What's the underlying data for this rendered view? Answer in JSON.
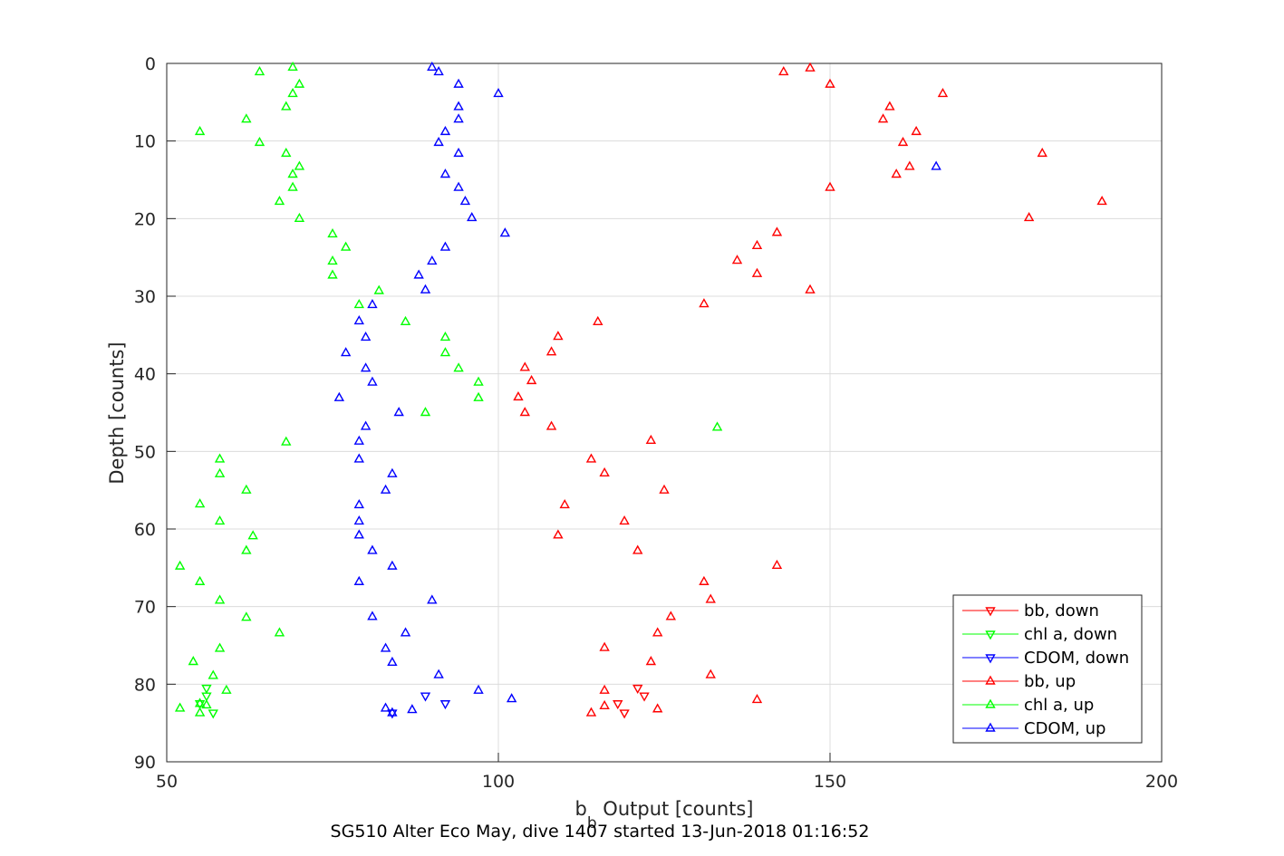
{
  "chart_data": {
    "type": "scatter",
    "xlabel": "b",
    "xlabel_sub": "b",
    "xlabel_rest": " Output [counts]",
    "ylabel": "Depth [counts]",
    "caption": "SG510 Alter Eco May, dive 1407 started 13-Jun-2018 01:16:52",
    "xlim": [
      50,
      200
    ],
    "ylim": [
      0,
      90
    ],
    "y_reversed": true,
    "grid": true,
    "xticks": [
      "50",
      "100",
      "150",
      "200"
    ],
    "yticks": [
      "0",
      "10",
      "20",
      "30",
      "40",
      "50",
      "60",
      "70",
      "80",
      "90"
    ],
    "legend_position": "bottom-right",
    "series": [
      {
        "name": "bb, down",
        "color": "#ff0000",
        "marker": "triangle-down",
        "points": [
          [
            121,
            80.5
          ],
          [
            122,
            81.5
          ],
          [
            118,
            82.5
          ],
          [
            119,
            83.7
          ]
        ]
      },
      {
        "name": "chl a, down",
        "color": "#00ff00",
        "marker": "triangle-down",
        "points": [
          [
            56,
            80.5
          ],
          [
            56,
            81.5
          ],
          [
            55,
            82.5
          ],
          [
            57,
            83.7
          ]
        ]
      },
      {
        "name": "CDOM, down",
        "color": "#0000ff",
        "marker": "triangle-down",
        "points": [
          [
            89,
            81.5
          ],
          [
            92,
            82.5
          ],
          [
            84,
            83.7
          ]
        ]
      },
      {
        "name": "bb, up",
        "color": "#ff0000",
        "marker": "triangle-up",
        "points": [
          [
            147,
            0.6
          ],
          [
            143,
            1.1
          ],
          [
            150,
            2.7
          ],
          [
            167,
            3.9
          ],
          [
            159,
            5.6
          ],
          [
            158,
            7.2
          ],
          [
            163,
            8.8
          ],
          [
            161,
            10.2
          ],
          [
            182,
            11.6
          ],
          [
            162,
            13.3
          ],
          [
            160,
            14.3
          ],
          [
            150,
            16
          ],
          [
            191,
            17.8
          ],
          [
            180,
            19.9
          ],
          [
            142,
            21.8
          ],
          [
            139,
            23.5
          ],
          [
            136,
            25.4
          ],
          [
            139,
            27.1
          ],
          [
            147,
            29.2
          ],
          [
            131,
            31
          ],
          [
            115,
            33.3
          ],
          [
            109,
            35.2
          ],
          [
            108,
            37.2
          ],
          [
            104,
            39.2
          ],
          [
            105,
            40.9
          ],
          [
            103,
            43
          ],
          [
            104,
            45
          ],
          [
            108,
            46.8
          ],
          [
            123,
            48.6
          ],
          [
            114,
            51
          ],
          [
            116,
            52.8
          ],
          [
            125,
            55
          ],
          [
            110,
            56.9
          ],
          [
            119,
            59
          ],
          [
            109,
            60.8
          ],
          [
            121,
            62.8
          ],
          [
            142,
            64.7
          ],
          [
            131,
            66.8
          ],
          [
            132,
            69.1
          ],
          [
            126,
            71.3
          ],
          [
            124,
            73.4
          ],
          [
            116,
            75.3
          ],
          [
            123,
            77.1
          ],
          [
            132,
            78.8
          ],
          [
            116,
            80.8
          ],
          [
            139,
            82
          ],
          [
            116,
            82.8
          ],
          [
            114,
            83.7
          ],
          [
            124,
            83.2
          ]
        ]
      },
      {
        "name": "chl a, up",
        "color": "#00ff00",
        "marker": "triangle-up",
        "points": [
          [
            69,
            0.5
          ],
          [
            64,
            1.1
          ],
          [
            70,
            2.7
          ],
          [
            69,
            3.9
          ],
          [
            68,
            5.6
          ],
          [
            62,
            7.2
          ],
          [
            55,
            8.8
          ],
          [
            64,
            10.2
          ],
          [
            68,
            11.6
          ],
          [
            70,
            13.3
          ],
          [
            69,
            14.3
          ],
          [
            69,
            16
          ],
          [
            67,
            17.8
          ],
          [
            70,
            20
          ],
          [
            75,
            22
          ],
          [
            77,
            23.7
          ],
          [
            75,
            25.5
          ],
          [
            75,
            27.3
          ],
          [
            82,
            29.3
          ],
          [
            79,
            31.1
          ],
          [
            86,
            33.3
          ],
          [
            92,
            35.3
          ],
          [
            92,
            37.3
          ],
          [
            94,
            39.3
          ],
          [
            97,
            41.1
          ],
          [
            97,
            43.1
          ],
          [
            89,
            45
          ],
          [
            133,
            46.9
          ],
          [
            68,
            48.8
          ],
          [
            58,
            51
          ],
          [
            58,
            52.9
          ],
          [
            62,
            55
          ],
          [
            55,
            56.8
          ],
          [
            58,
            59
          ],
          [
            63,
            60.9
          ],
          [
            62,
            62.8
          ],
          [
            52,
            64.8
          ],
          [
            55,
            66.8
          ],
          [
            58,
            69.2
          ],
          [
            62,
            71.4
          ],
          [
            67,
            73.4
          ],
          [
            58,
            75.4
          ],
          [
            54,
            77.1
          ],
          [
            57,
            78.9
          ],
          [
            59,
            80.8
          ],
          [
            55,
            82.5
          ],
          [
            52,
            83.1
          ],
          [
            56,
            82.7
          ],
          [
            55,
            83.7
          ]
        ]
      },
      {
        "name": "CDOM, up",
        "color": "#0000ff",
        "marker": "triangle-up",
        "points": [
          [
            90,
            0.5
          ],
          [
            91,
            1.1
          ],
          [
            94,
            2.7
          ],
          [
            100,
            3.9
          ],
          [
            94,
            5.6
          ],
          [
            94,
            7.2
          ],
          [
            92,
            8.8
          ],
          [
            91,
            10.2
          ],
          [
            94,
            11.6
          ],
          [
            166,
            13.3
          ],
          [
            92,
            14.3
          ],
          [
            94,
            16
          ],
          [
            95,
            17.8
          ],
          [
            96,
            19.9
          ],
          [
            101,
            21.9
          ],
          [
            92,
            23.7
          ],
          [
            90,
            25.5
          ],
          [
            88,
            27.3
          ],
          [
            89,
            29.2
          ],
          [
            81,
            31.1
          ],
          [
            79,
            33.2
          ],
          [
            80,
            35.3
          ],
          [
            77,
            37.3
          ],
          [
            80,
            39.3
          ],
          [
            81,
            41.1
          ],
          [
            76,
            43.1
          ],
          [
            85,
            45
          ],
          [
            80,
            46.8
          ],
          [
            79,
            48.7
          ],
          [
            79,
            51
          ],
          [
            84,
            52.9
          ],
          [
            83,
            55
          ],
          [
            79,
            56.9
          ],
          [
            79,
            59
          ],
          [
            79,
            60.8
          ],
          [
            81,
            62.8
          ],
          [
            84,
            64.8
          ],
          [
            79,
            66.8
          ],
          [
            90,
            69.2
          ],
          [
            81,
            71.3
          ],
          [
            86,
            73.4
          ],
          [
            83,
            75.4
          ],
          [
            84,
            77.2
          ],
          [
            91,
            78.8
          ],
          [
            97,
            80.8
          ],
          [
            102,
            81.9
          ],
          [
            83,
            83.1
          ],
          [
            87,
            83.3
          ],
          [
            84,
            83.7
          ]
        ]
      }
    ]
  }
}
